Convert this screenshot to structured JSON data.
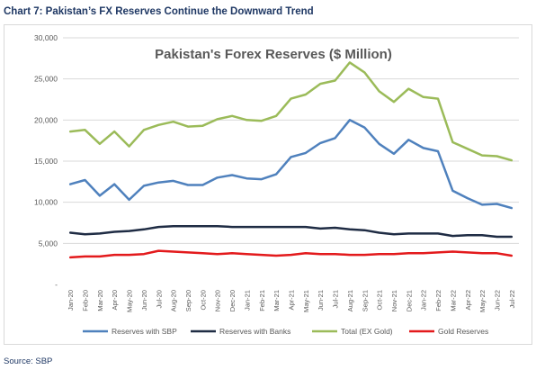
{
  "caption": "Chart 7: Pakistan’s FX Reserves Continue the Downward Trend",
  "source": "Source: SBP",
  "chart_data": {
    "type": "line",
    "title": "Pakistan's Forex Reserves ($ Million)",
    "xlabel": "",
    "ylabel": "",
    "ylim": [
      0,
      30000
    ],
    "yticks": [
      0,
      5000,
      10000,
      15000,
      20000,
      25000,
      30000
    ],
    "ytick_labels": [
      "-",
      "5,000",
      "10,000",
      "15,000",
      "20,000",
      "25,000",
      "30,000"
    ],
    "grid": "horizontal",
    "legend_position": "bottom",
    "categories": [
      "Jan-20",
      "Feb-20",
      "Mar-20",
      "Apr-20",
      "May-20",
      "Jun-20",
      "Jul-20",
      "Aug-20",
      "Sep-20",
      "Oct-20",
      "Nov-20",
      "Dec-20",
      "Jan-21",
      "Feb-21",
      "Mar-21",
      "Apr-21",
      "May-21",
      "Jun-21",
      "Jul-21",
      "Aug-21",
      "Sep-21",
      "Oct-21",
      "Nov-21",
      "Dec-21",
      "Jan-22",
      "Feb-22",
      "Mar-22",
      "Apr-22",
      "May-22",
      "Jun-22",
      "Jul-22"
    ],
    "series": [
      {
        "name": "Reserves with SBP",
        "color": "#4f81bd",
        "values": [
          12200,
          12700,
          10800,
          12200,
          10300,
          12000,
          12400,
          12600,
          12100,
          12100,
          13000,
          13300,
          12900,
          12800,
          13400,
          15500,
          16000,
          17200,
          17800,
          20000,
          19100,
          17100,
          15900,
          17600,
          16600,
          16200,
          11400,
          10500,
          9700,
          9800,
          9300
        ]
      },
      {
        "name": "Reserves with Banks",
        "color": "#1f2c44",
        "values": [
          6300,
          6100,
          6200,
          6400,
          6500,
          6700,
          7000,
          7100,
          7100,
          7100,
          7100,
          7000,
          7000,
          7000,
          7000,
          7000,
          7000,
          6800,
          6900,
          6700,
          6600,
          6300,
          6100,
          6200,
          6200,
          6200,
          5900,
          6000,
          6000,
          5800,
          5800
        ]
      },
      {
        "name": "Total (EX Gold)",
        "color": "#9bbb59",
        "values": [
          18600,
          18800,
          17100,
          18600,
          16800,
          18800,
          19400,
          19800,
          19200,
          19300,
          20100,
          20500,
          20000,
          19900,
          20500,
          22600,
          23100,
          24400,
          24800,
          27000,
          25800,
          23500,
          22200,
          23800,
          22800,
          22600,
          17300,
          16500,
          15700,
          15600,
          15100
        ]
      },
      {
        "name": "Gold Reserves",
        "color": "#e31a1c",
        "values": [
          3300,
          3400,
          3400,
          3600,
          3600,
          3700,
          4100,
          4000,
          3900,
          3800,
          3700,
          3800,
          3700,
          3600,
          3500,
          3600,
          3800,
          3700,
          3700,
          3600,
          3600,
          3700,
          3700,
          3800,
          3800,
          3900,
          4000,
          3900,
          3800,
          3800,
          3500
        ]
      }
    ]
  }
}
